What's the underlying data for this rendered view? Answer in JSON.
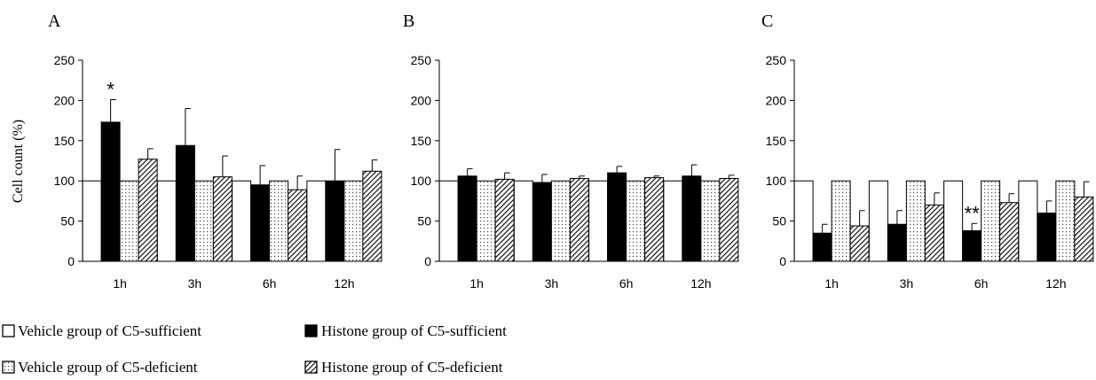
{
  "figure": {
    "ylabel": "Cell count (%)",
    "legend": [
      {
        "name": "Vehicle group of C5-sufficient",
        "pattern": "white"
      },
      {
        "name": "Histone group of C5-sufficient",
        "pattern": "black"
      },
      {
        "name": "Vehicle group of C5-deficient",
        "pattern": "dots"
      },
      {
        "name": "Histone group of C5-deficient",
        "pattern": "hatch"
      }
    ]
  },
  "chart_data": [
    {
      "type": "bar",
      "panel": "A",
      "categories": [
        "1h",
        "3h",
        "6h",
        "12h"
      ],
      "ylim": [
        0,
        250
      ],
      "yticks": [
        0,
        50,
        100,
        150,
        200,
        250
      ],
      "series": [
        {
          "name": "Vehicle group of C5-sufficient",
          "values": [
            100,
            100,
            100,
            100
          ],
          "errors": [
            0,
            0,
            0,
            0
          ]
        },
        {
          "name": "Histone group of C5-sufficient",
          "values": [
            173,
            144,
            95,
            100
          ],
          "errors": [
            28,
            46,
            24,
            39
          ]
        },
        {
          "name": "Vehicle group of C5-deficient",
          "values": [
            100,
            100,
            100,
            100
          ],
          "errors": [
            0,
            0,
            0,
            0
          ]
        },
        {
          "name": "Histone group of C5-deficient",
          "values": [
            127,
            105,
            89,
            112
          ],
          "errors": [
            13,
            26,
            17,
            14
          ]
        }
      ],
      "annotations": [
        {
          "category": "1h",
          "series": 1,
          "text": "*"
        }
      ]
    },
    {
      "type": "bar",
      "panel": "B",
      "categories": [
        "1h",
        "3h",
        "6h",
        "12h"
      ],
      "ylim": [
        0,
        250
      ],
      "yticks": [
        0,
        50,
        100,
        150,
        200,
        250
      ],
      "series": [
        {
          "name": "Vehicle group of C5-sufficient",
          "values": [
            100,
            100,
            100,
            100
          ],
          "errors": [
            0,
            0,
            0,
            0
          ]
        },
        {
          "name": "Histone group of C5-sufficient",
          "values": [
            106,
            98,
            110,
            106
          ],
          "errors": [
            9,
            10,
            8,
            14
          ]
        },
        {
          "name": "Vehicle group of C5-deficient",
          "values": [
            100,
            100,
            100,
            100
          ],
          "errors": [
            0,
            0,
            0,
            0
          ]
        },
        {
          "name": "Histone group of C5-deficient",
          "values": [
            102,
            103,
            104,
            103
          ],
          "errors": [
            8,
            3,
            2,
            4
          ]
        }
      ],
      "annotations": []
    },
    {
      "type": "bar",
      "panel": "C",
      "categories": [
        "1h",
        "3h",
        "6h",
        "12h"
      ],
      "ylim": [
        0,
        250
      ],
      "yticks": [
        0,
        50,
        100,
        150,
        200,
        250
      ],
      "series": [
        {
          "name": "Vehicle group of C5-sufficient",
          "values": [
            100,
            100,
            100,
            100
          ],
          "errors": [
            0,
            0,
            0,
            0
          ]
        },
        {
          "name": "Histone group of C5-sufficient",
          "values": [
            35,
            46,
            38,
            60
          ],
          "errors": [
            11,
            17,
            9,
            15
          ]
        },
        {
          "name": "Vehicle group of C5-deficient",
          "values": [
            100,
            100,
            100,
            100
          ],
          "errors": [
            0,
            0,
            0,
            0
          ]
        },
        {
          "name": "Histone group of C5-deficient",
          "values": [
            44,
            70,
            73,
            80
          ],
          "errors": [
            19,
            15,
            11,
            19
          ]
        }
      ],
      "annotations": [
        {
          "category": "6h",
          "series": 1,
          "text": "**"
        }
      ]
    }
  ]
}
